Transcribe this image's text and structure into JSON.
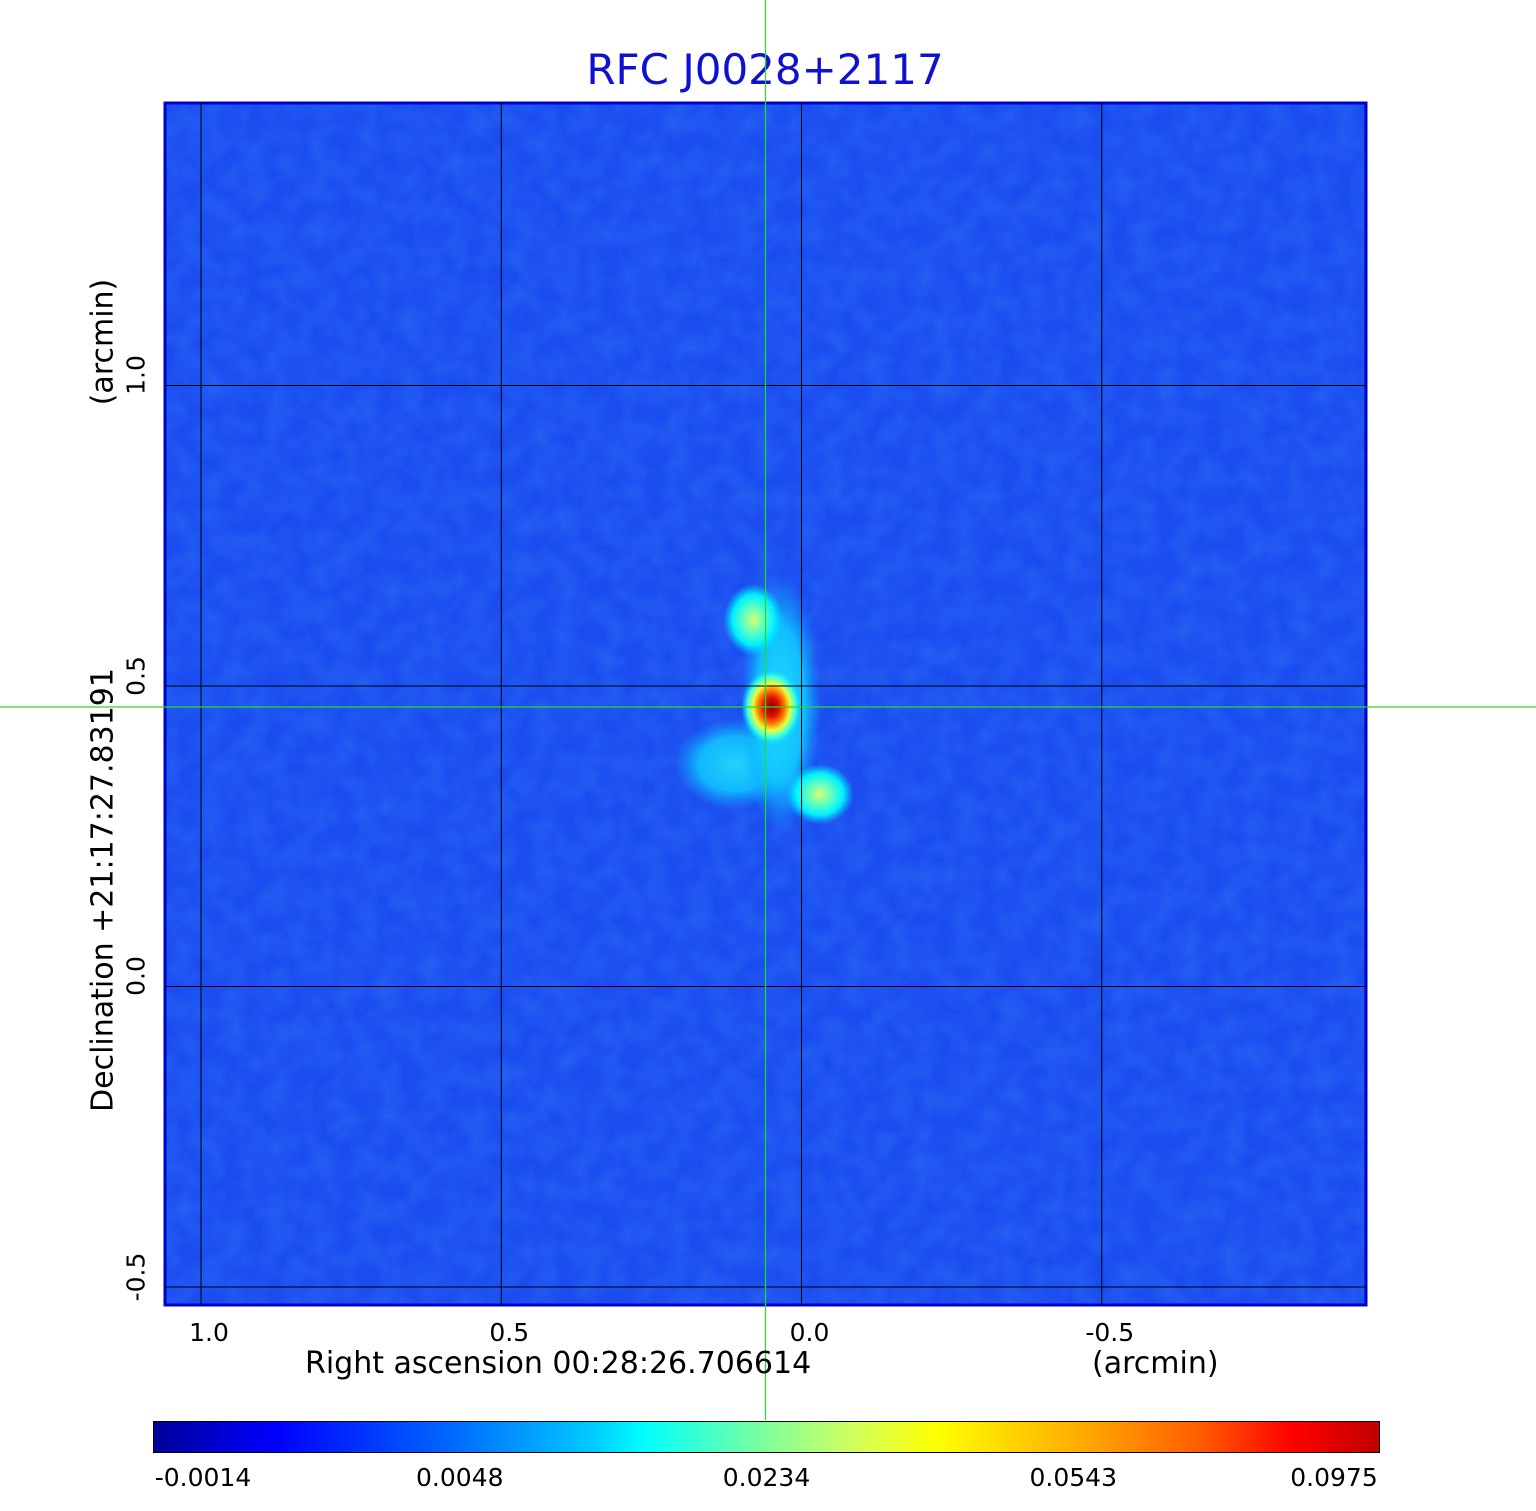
{
  "chart_data": {
    "type": "heatmap",
    "title": "RFC J0028+2117",
    "xlabel": "Right ascension  00:28:26.706614",
    "xunit": "(arcmin)",
    "ylabel": "Declination  +21:17:27.83191",
    "yunit": "(arcmin)",
    "x_ticks": [
      "1.0",
      "0.5",
      "0.0",
      "-0.5"
    ],
    "x_tick_values": [
      1.0,
      0.5,
      0.0,
      -0.5
    ],
    "y_ticks": [
      "1.0",
      "0.5",
      "0.0",
      "-0.5"
    ],
    "y_tick_values": [
      1.0,
      0.5,
      0.0,
      -0.5
    ],
    "xlim": [
      1.06,
      -0.94
    ],
    "ylim": [
      -0.53,
      1.47
    ],
    "grid": true,
    "crosshair": {
      "x": 0.06,
      "y": 0.465
    },
    "colorbar_ticks": [
      "-0.0014",
      "0.0048",
      "0.0234",
      "0.0543",
      "0.0975"
    ],
    "colormap": "jet",
    "sources": [
      {
        "x": 0.05,
        "y": 0.465,
        "peak": 0.0975
      },
      {
        "x": 0.08,
        "y": 0.61,
        "peak": 0.028
      },
      {
        "x": -0.03,
        "y": 0.32,
        "peak": 0.026
      },
      {
        "x": 0.11,
        "y": 0.37,
        "peak": 0.009
      }
    ]
  },
  "colors": {
    "background_field": "#1e50f0",
    "crosshair": "#22dd22",
    "grid": "#000000",
    "title": "#1010d0"
  }
}
